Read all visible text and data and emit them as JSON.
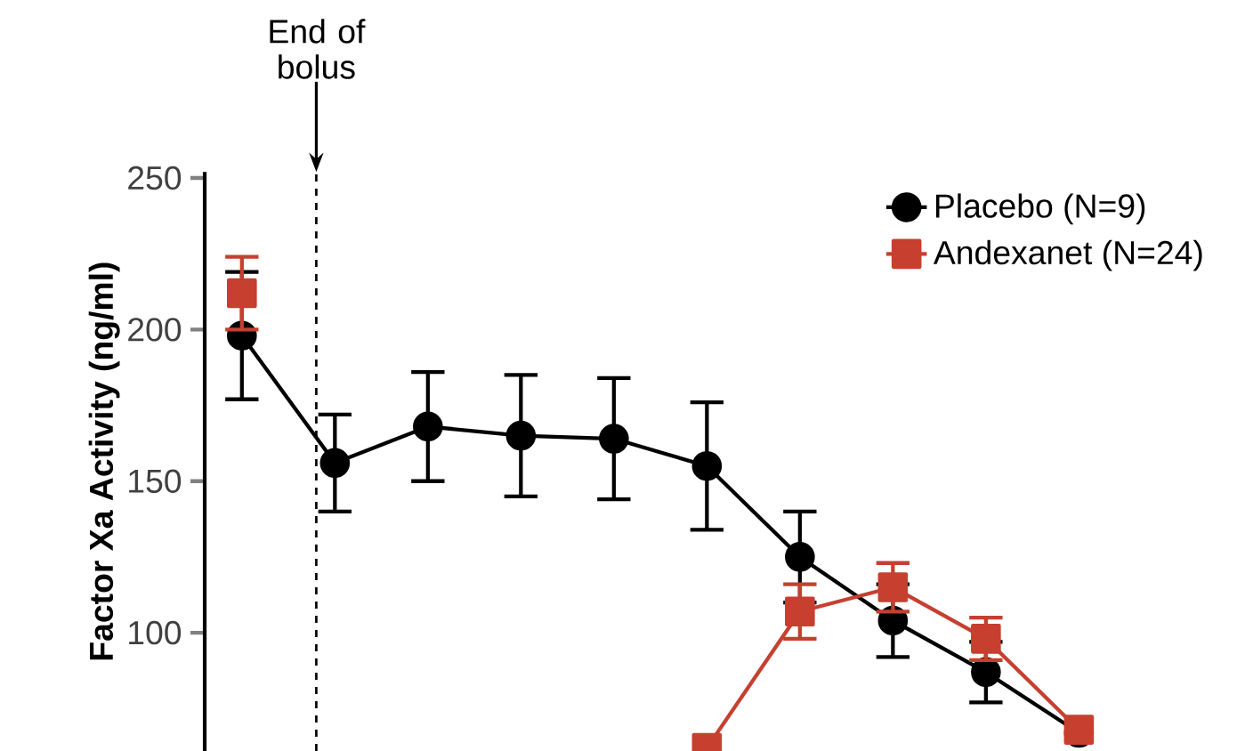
{
  "chart_data": {
    "type": "line",
    "ylabel": "Factor Xa Activity (ng/ml)",
    "categories": [
      null,
      null,
      null,
      null,
      null,
      null,
      null,
      null,
      null,
      null
    ],
    "ylim": [
      61,
      252
    ],
    "yticks": [
      100,
      150,
      200,
      250
    ],
    "tick_labels": "y",
    "legend": "top right",
    "grid": false,
    "series": [
      {
        "name": "Placebo (N=9)",
        "color": "#000000",
        "marker": "circle",
        "values": [
          198,
          156,
          168,
          165,
          164,
          155,
          125,
          104,
          87,
          67
        ],
        "errors": [
          21,
          16,
          18,
          20,
          20,
          21,
          15,
          12,
          10,
          null
        ]
      },
      {
        "name": "Andexanet (N=24)",
        "color": "#c63f2f",
        "marker": "square",
        "values": [
          212,
          null,
          null,
          null,
          null,
          62,
          107,
          115,
          98,
          68
        ],
        "errors": [
          12,
          null,
          null,
          null,
          null,
          null,
          9,
          8,
          7,
          null
        ]
      }
    ],
    "annotations": [
      "End of bolus"
    ]
  }
}
